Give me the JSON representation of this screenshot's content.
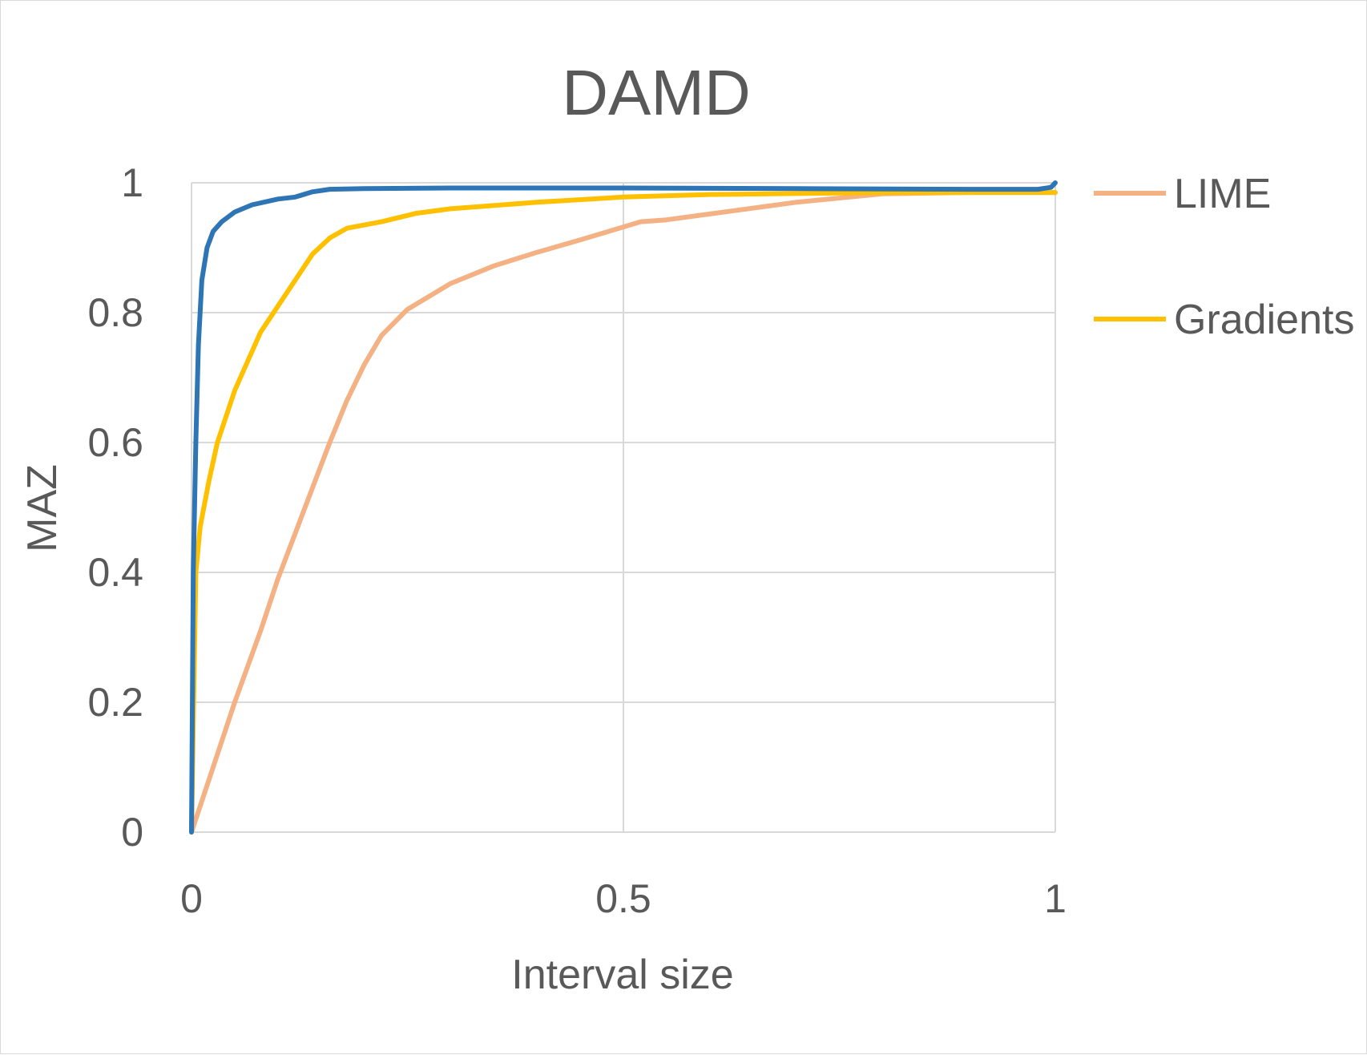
{
  "chart_data": {
    "type": "line",
    "title": "DAMD",
    "xlabel": "Interval size",
    "ylabel": "MAZ",
    "xlim": [
      0,
      1
    ],
    "ylim": [
      0,
      1
    ],
    "x_ticks": [
      "0",
      "0.5",
      "1"
    ],
    "y_ticks": [
      "0",
      "0.2",
      "0.4",
      "0.6",
      "0.8",
      "1"
    ],
    "grid": true,
    "legend_position": "right",
    "series": [
      {
        "name": "",
        "color": "#2e75b6",
        "points": [
          [
            0,
            0
          ],
          [
            0.002,
            0.4
          ],
          [
            0.005,
            0.6
          ],
          [
            0.008,
            0.75
          ],
          [
            0.012,
            0.85
          ],
          [
            0.018,
            0.9
          ],
          [
            0.025,
            0.925
          ],
          [
            0.035,
            0.94
          ],
          [
            0.05,
            0.955
          ],
          [
            0.07,
            0.966
          ],
          [
            0.1,
            0.975
          ],
          [
            0.12,
            0.978
          ],
          [
            0.14,
            0.986
          ],
          [
            0.16,
            0.99
          ],
          [
            0.2,
            0.991
          ],
          [
            0.3,
            0.992
          ],
          [
            0.5,
            0.992
          ],
          [
            0.7,
            0.991
          ],
          [
            0.9,
            0.99
          ],
          [
            0.98,
            0.99
          ],
          [
            0.995,
            0.993
          ],
          [
            1.0,
            1.0
          ]
        ]
      },
      {
        "name": "LIME",
        "color": "#f4b183",
        "points": [
          [
            0,
            0
          ],
          [
            0.02,
            0.08
          ],
          [
            0.05,
            0.2
          ],
          [
            0.08,
            0.31
          ],
          [
            0.1,
            0.39
          ],
          [
            0.12,
            0.46
          ],
          [
            0.14,
            0.53
          ],
          [
            0.16,
            0.6
          ],
          [
            0.18,
            0.665
          ],
          [
            0.2,
            0.72
          ],
          [
            0.22,
            0.765
          ],
          [
            0.25,
            0.805
          ],
          [
            0.3,
            0.845
          ],
          [
            0.35,
            0.872
          ],
          [
            0.4,
            0.893
          ],
          [
            0.45,
            0.912
          ],
          [
            0.5,
            0.932
          ],
          [
            0.52,
            0.94
          ],
          [
            0.55,
            0.943
          ],
          [
            0.6,
            0.952
          ],
          [
            0.7,
            0.97
          ],
          [
            0.8,
            0.983
          ],
          [
            0.9,
            0.985
          ],
          [
            1.0,
            0.985
          ]
        ]
      },
      {
        "name": "Gradients",
        "color": "#ffc000",
        "points": [
          [
            0,
            0
          ],
          [
            0.005,
            0.4
          ],
          [
            0.01,
            0.47
          ],
          [
            0.02,
            0.54
          ],
          [
            0.03,
            0.6
          ],
          [
            0.05,
            0.68
          ],
          [
            0.08,
            0.77
          ],
          [
            0.1,
            0.81
          ],
          [
            0.12,
            0.85
          ],
          [
            0.14,
            0.89
          ],
          [
            0.16,
            0.915
          ],
          [
            0.18,
            0.93
          ],
          [
            0.22,
            0.94
          ],
          [
            0.26,
            0.953
          ],
          [
            0.3,
            0.96
          ],
          [
            0.4,
            0.97
          ],
          [
            0.5,
            0.978
          ],
          [
            0.6,
            0.982
          ],
          [
            0.8,
            0.985
          ],
          [
            1.0,
            0.985
          ]
        ]
      }
    ]
  }
}
